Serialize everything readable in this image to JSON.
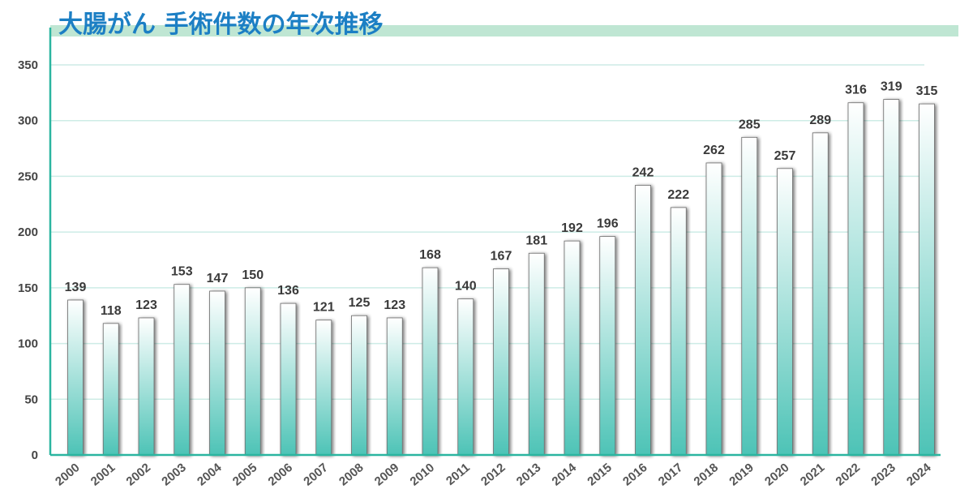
{
  "chart_data": {
    "type": "bar",
    "title": "大腸がん 手術件数の年次推移",
    "xlabel": "",
    "ylabel": "",
    "categories": [
      "2000",
      "2001",
      "2002",
      "2003",
      "2004",
      "2005",
      "2006",
      "2007",
      "2008",
      "2009",
      "2010",
      "2011",
      "2012",
      "2013",
      "2014",
      "2015",
      "2016",
      "2017",
      "2018",
      "2019",
      "2020",
      "2021",
      "2022",
      "2023",
      "2024"
    ],
    "values": [
      139,
      118,
      123,
      153,
      147,
      150,
      136,
      121,
      125,
      123,
      168,
      140,
      167,
      181,
      192,
      196,
      242,
      222,
      262,
      285,
      257,
      289,
      316,
      319,
      315
    ],
    "ylim": [
      0,
      350
    ],
    "yticks": [
      0,
      50,
      100,
      150,
      200,
      250,
      300,
      350
    ],
    "grid": true,
    "legend": "none",
    "data_labels": true,
    "colors": {
      "title": "#1c7fc4",
      "title_band": "#bfe6d3",
      "axis": "#2bb5a0",
      "grid": "#cdece6",
      "bar_top": "#ffffff",
      "bar_bottom": "#4dc3b6"
    }
  }
}
